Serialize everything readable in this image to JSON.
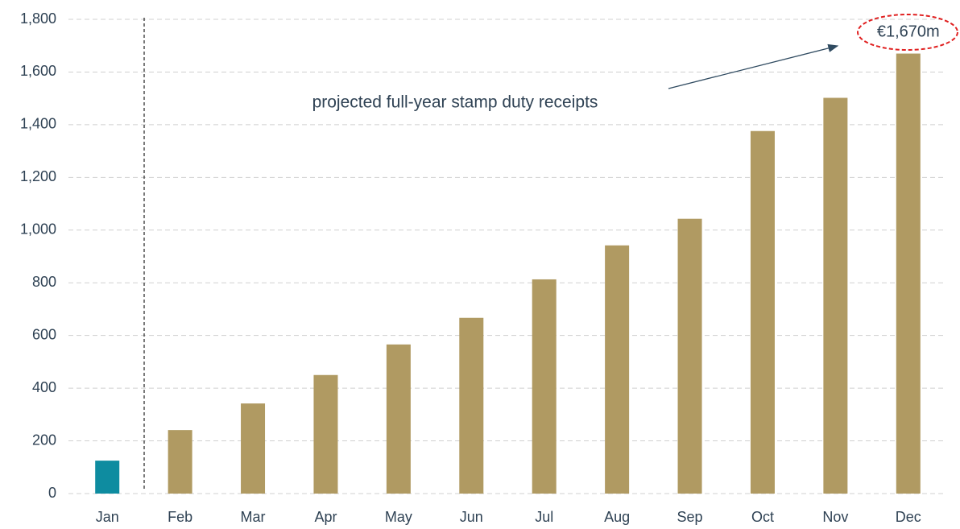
{
  "chart_data": {
    "type": "bar",
    "categories": [
      "Jan",
      "Feb",
      "Mar",
      "Apr",
      "May",
      "Jun",
      "Jul",
      "Aug",
      "Sep",
      "Oct",
      "Nov",
      "Dec"
    ],
    "values": [
      125,
      241,
      342,
      450,
      566,
      667,
      813,
      942,
      1043,
      1376,
      1502,
      1670
    ],
    "value_labels": [
      null,
      null,
      null,
      null,
      null,
      null,
      null,
      null,
      null,
      null,
      null,
      "€1,670m"
    ],
    "colors": [
      "#0e8ca0",
      "#b09a62",
      "#b09a62",
      "#b09a62",
      "#b09a62",
      "#b09a62",
      "#b09a62",
      "#b09a62",
      "#b09a62",
      "#b09a62",
      "#b09a62",
      "#b09a62"
    ],
    "ylim": [
      0,
      1800
    ],
    "yticks": [
      0,
      200,
      400,
      600,
      800,
      {
        "value": 1000,
        "label": "1,000"
      },
      {
        "value": 1200,
        "label": "1,200"
      },
      {
        "value": 1400,
        "label": "1,400"
      },
      {
        "value": 1600,
        "label": "1,600"
      },
      {
        "value": 1800,
        "label": "1,800"
      }
    ],
    "grid": true,
    "annotation": "projected full-year stamp duty receipts"
  }
}
